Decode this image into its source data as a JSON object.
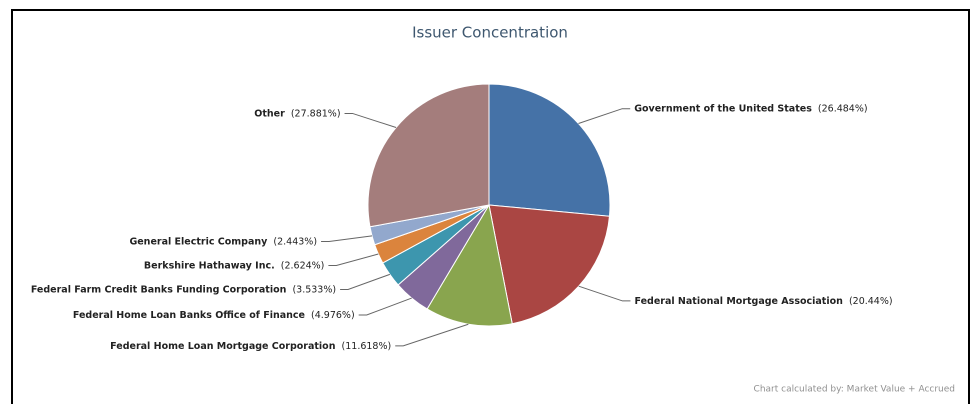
{
  "chart_data": {
    "type": "pie",
    "title": "Issuer Concentration",
    "categories": [
      "Government of the United States",
      "Federal National Mortgage Association",
      "Federal Home Loan Mortgage Corporation",
      "Federal Home Loan Banks Office of Finance",
      "Federal Farm Credit Banks Funding Corporation",
      "Berkshire Hathaway Inc.",
      "General Electric Company",
      "Other"
    ],
    "values": [
      26.484,
      20.44,
      11.618,
      4.976,
      3.533,
      2.624,
      2.443,
      27.881
    ],
    "value_labels": [
      "(26.484%)",
      "(20.44%)",
      "(11.618%)",
      "(4.976%)",
      "(3.533%)",
      "(2.624%)",
      "(2.443%)",
      "(27.881%)"
    ],
    "colors": [
      "#4572A7",
      "#AA4643",
      "#89A54E",
      "#80699B",
      "#3D96AE",
      "#DB843D",
      "#92A8CD",
      "#A47D7C"
    ],
    "footnote": "Chart calculated by: Market Value + Accrued"
  }
}
